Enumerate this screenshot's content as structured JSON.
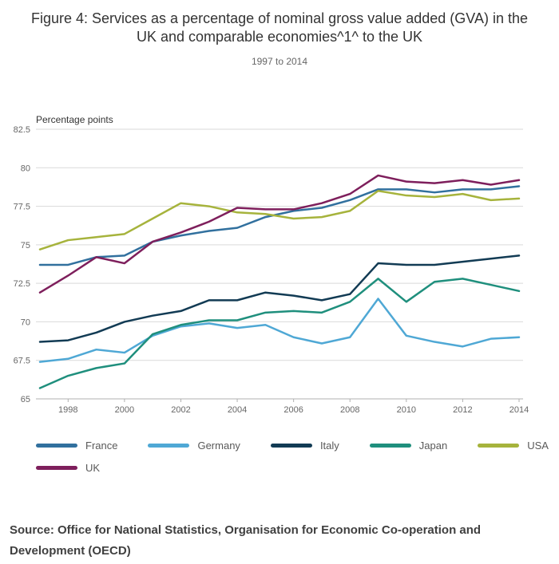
{
  "title": "Figure 4: Services as a percentage of nominal gross value added (GVA) in the UK and comparable economies^1^ to the UK",
  "subtitle": "1997 to 2014",
  "source": "Source: Office for National Statistics, Organisation for Economic Co-operation and Development (OECD)",
  "chart_data": {
    "type": "line",
    "ylabel": "Percentage points",
    "xlim": [
      1997,
      2014
    ],
    "ylim": [
      65,
      82.5
    ],
    "grid": true,
    "legend_position": "bottom",
    "x": [
      1997,
      1998,
      1999,
      2000,
      2001,
      2002,
      2003,
      2004,
      2005,
      2006,
      2007,
      2008,
      2009,
      2010,
      2011,
      2012,
      2013,
      2014
    ],
    "x_ticks": [
      1998,
      2000,
      2002,
      2004,
      2006,
      2008,
      2010,
      2012,
      2014
    ],
    "y_ticks": [
      65,
      67.5,
      70,
      72.5,
      75,
      77.5,
      80,
      82.5
    ],
    "y_tick_labels": [
      "65",
      "67.5",
      "70",
      "72.5",
      "75",
      "77.5",
      "80",
      "82.5"
    ],
    "series": [
      {
        "name": "France",
        "color": "#31709e",
        "values": [
          73.7,
          73.7,
          74.2,
          74.3,
          75.2,
          75.6,
          75.9,
          76.1,
          76.8,
          77.2,
          77.4,
          77.9,
          78.6,
          78.6,
          78.4,
          78.6,
          78.6,
          78.8
        ]
      },
      {
        "name": "Germany",
        "color": "#4fa8d5",
        "values": [
          67.4,
          67.6,
          68.2,
          68.0,
          69.1,
          69.7,
          69.9,
          69.6,
          69.8,
          69.0,
          68.6,
          69.0,
          71.5,
          69.1,
          68.7,
          68.4,
          68.9,
          69.0
        ]
      },
      {
        "name": "Italy",
        "color": "#123b54",
        "values": [
          68.7,
          68.8,
          69.3,
          70.0,
          70.4,
          70.7,
          71.4,
          71.4,
          71.9,
          71.7,
          71.4,
          71.8,
          73.8,
          73.7,
          73.7,
          73.9,
          74.1,
          74.3
        ]
      },
      {
        "name": "Japan",
        "color": "#1f8f7d",
        "values": [
          65.7,
          66.5,
          67.0,
          67.3,
          69.2,
          69.8,
          70.1,
          70.1,
          70.6,
          70.7,
          70.6,
          71.3,
          72.8,
          71.3,
          72.6,
          72.8,
          72.4,
          72.0
        ]
      },
      {
        "name": "USA",
        "color": "#a6b33c",
        "values": [
          74.7,
          75.3,
          75.5,
          75.7,
          76.7,
          77.7,
          77.5,
          77.1,
          77.0,
          76.7,
          76.8,
          77.2,
          78.5,
          78.2,
          78.1,
          78.3,
          77.9,
          78.0
        ]
      },
      {
        "name": "UK",
        "color": "#7e1f5c",
        "values": [
          71.9,
          73.0,
          74.2,
          73.8,
          75.2,
          75.8,
          76.5,
          77.4,
          77.3,
          77.3,
          77.7,
          78.3,
          79.5,
          79.1,
          79.0,
          79.2,
          78.9,
          79.2
        ]
      }
    ]
  }
}
